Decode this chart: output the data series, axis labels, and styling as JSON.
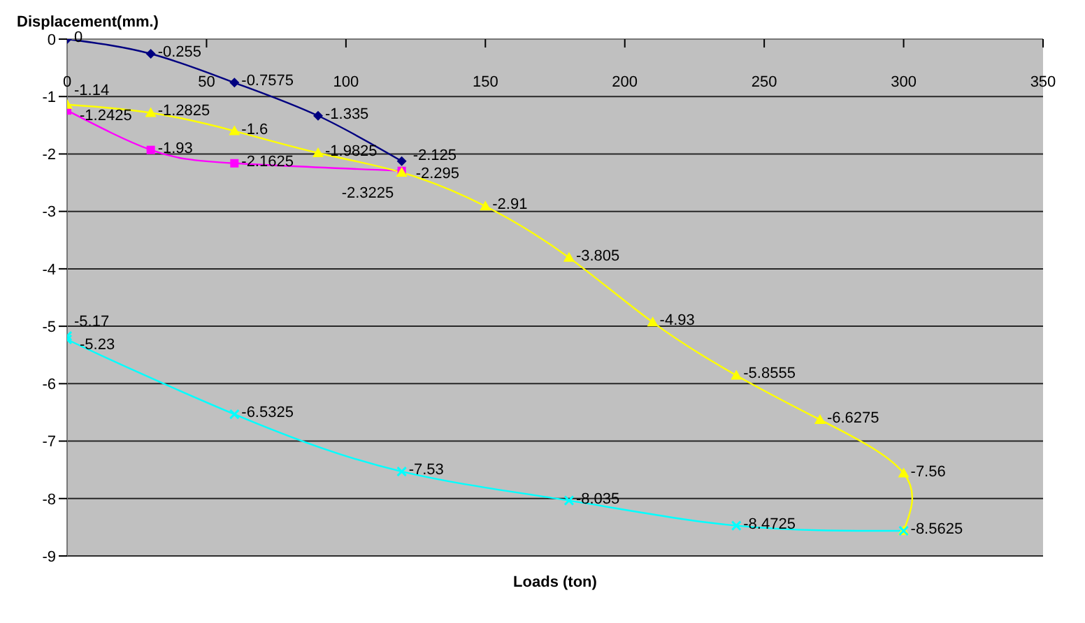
{
  "chart_data": {
    "type": "line",
    "ylabel": "Displacement(mm.)",
    "xlabel": "Loads (ton)",
    "xlim": [
      0,
      350
    ],
    "xticks": [
      0,
      50,
      100,
      150,
      200,
      250,
      300,
      350
    ],
    "ylim": [
      -9,
      0
    ],
    "yticks": [
      0,
      -1,
      -2,
      -3,
      -4,
      -5,
      -6,
      -7,
      -8,
      -9
    ],
    "grid": "y",
    "line_style": "solid",
    "series": [
      {
        "color": "#000080",
        "marker": "diamond",
        "x": [
          0,
          30,
          60,
          90,
          120
        ],
        "values": [
          0,
          -0.255,
          -0.7575,
          -1.335,
          -2.125
        ],
        "value_labels": [
          "0",
          "-0.255",
          "-0.7575",
          "-1.335",
          "-2.125"
        ]
      },
      {
        "color": "#ff00ff",
        "marker": "square",
        "x": [
          0,
          30,
          60,
          120
        ],
        "values": [
          -1.2425,
          -1.93,
          -2.1625,
          -2.295
        ],
        "value_labels": [
          "-1.2425",
          "-1.93",
          "-2.1625",
          "-2.295"
        ]
      },
      {
        "color": "#ffff00",
        "marker": "triangle",
        "x": [
          0,
          30,
          60,
          90,
          120,
          150,
          180,
          210,
          240,
          270,
          300,
          300
        ],
        "values": [
          -1.14,
          -1.2825,
          -1.6,
          -1.9825,
          -2.3225,
          -2.91,
          -3.805,
          -4.93,
          -5.8555,
          -6.6275,
          -7.56,
          -8.5625
        ],
        "value_labels": [
          "-1.14",
          "-1.2825",
          "-1.6",
          "-1.9825",
          "-2.3225",
          "-2.91",
          "-3.805",
          "-4.93",
          "-5.8555",
          "-6.6275",
          "-7.56",
          "-8.5625"
        ]
      },
      {
        "color": "#00ffff",
        "marker": "cross",
        "x": [
          0,
          0,
          60,
          120,
          180,
          240,
          300
        ],
        "values": [
          -5.17,
          -5.23,
          -6.5325,
          -7.53,
          -8.035,
          -8.4725,
          -8.5625
        ],
        "value_labels": [
          "-5.17",
          "-5.23",
          "-6.5325",
          "-7.53",
          "-8.035",
          "-8.4725",
          null
        ]
      }
    ]
  }
}
